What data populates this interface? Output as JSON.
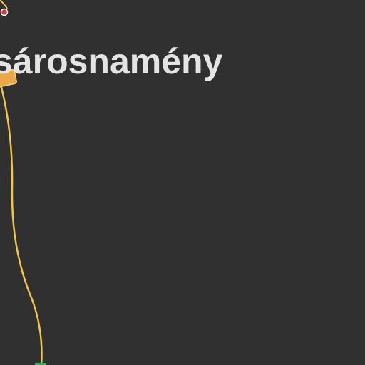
{
  "map": {
    "place_label": "sárosnamény",
    "colors": {
      "background": "#303030",
      "road": "#f2c544",
      "road_shield": "#e9a84a",
      "label": "#e4e4e4",
      "poi_red": "#d43a3a",
      "poi_green": "#3aa860"
    },
    "icons": {
      "road_shield": "road-shield-icon",
      "poi_marker": "poi-marker-icon",
      "poi_square": "poi-square-icon"
    }
  }
}
